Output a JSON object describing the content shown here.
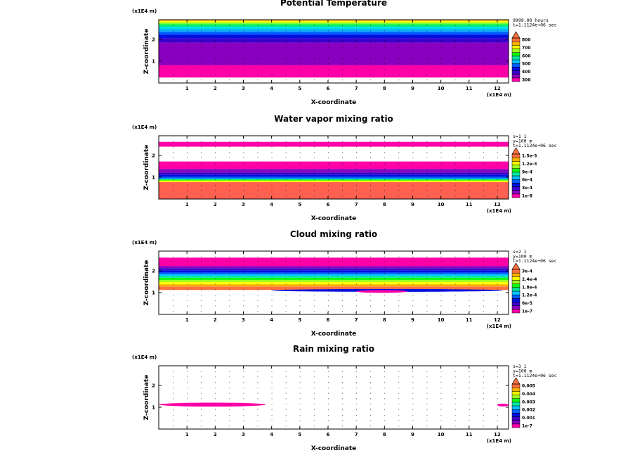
{
  "chart_data": [
    {
      "type": "heatmap",
      "title": "Potential Temperature",
      "xlabel": "X-coordinate",
      "ylabel": "Z-coordinate",
      "x_unit": "(x1E4 m)",
      "z_unit": "(x1E4 m)",
      "info": [
        "9999.00 hours",
        "t=1.1124e+06 sec"
      ],
      "xticks": [
        "1",
        "2",
        "3",
        "4",
        "5",
        "6",
        "7",
        "8",
        "9",
        "10",
        "11",
        "12"
      ],
      "zticks": [
        "1",
        "2"
      ],
      "xlim": [
        0,
        12.4
      ],
      "zlim": [
        0,
        2.9
      ],
      "colorbar": {
        "labels": [
          "300",
          "400",
          "500",
          "600",
          "700",
          "800"
        ],
        "colors": [
          "#ff00a8",
          "#8a00c0",
          "#3c00cc",
          "#0010e0",
          "#0060ff",
          "#00c8ff",
          "#00e8a0",
          "#10ff10",
          "#a0ff20",
          "#ffff00",
          "#ffb000",
          "#ff7040"
        ],
        "extend": "max"
      },
      "layers": [
        {
          "z0": 0.0,
          "z1": 0.25,
          "color": "#ffffff"
        },
        {
          "z0": 0.25,
          "z1": 0.82,
          "color": "#ff00a8"
        },
        {
          "z0": 0.82,
          "z1": 1.85,
          "color": "#8a00c0"
        },
        {
          "z0": 1.85,
          "z1": 2.05,
          "color": "#3c00cc"
        },
        {
          "z0": 2.05,
          "z1": 2.22,
          "color": "#0010e0"
        },
        {
          "z0": 2.22,
          "z1": 2.36,
          "color": "#0060ff"
        },
        {
          "z0": 2.36,
          "z1": 2.48,
          "color": "#00b4ff"
        },
        {
          "z0": 2.48,
          "z1": 2.58,
          "color": "#00e0e0"
        },
        {
          "z0": 2.58,
          "z1": 2.66,
          "color": "#00e890"
        },
        {
          "z0": 2.66,
          "z1": 2.73,
          "color": "#30ff30"
        },
        {
          "z0": 2.73,
          "z1": 2.79,
          "color": "#c0ff20"
        },
        {
          "z0": 2.79,
          "z1": 2.85,
          "color": "#ffff00"
        },
        {
          "z0": 2.85,
          "z1": 2.9,
          "color": "#ffa020"
        }
      ],
      "blobs": []
    },
    {
      "type": "heatmap",
      "title": "Water vapor mixing ratio",
      "xlabel": "X-coordinate",
      "ylabel": "Z-coordinate",
      "x_unit": "(x1E4 m)",
      "z_unit": "(x1E4 m)",
      "info": [
        "s=1 1",
        "y=100 m",
        "t=1.1124e+06 sec"
      ],
      "xticks": [
        "1",
        "2",
        "3",
        "4",
        "5",
        "6",
        "7",
        "8",
        "9",
        "10",
        "11",
        "12"
      ],
      "zticks": [
        "1",
        "2"
      ],
      "xlim": [
        0,
        12.4
      ],
      "zlim": [
        0,
        2.9
      ],
      "colorbar": {
        "labels": [
          "1e-8",
          "3e-4",
          "6e-4",
          "9e-4",
          "1.2e-3",
          "1.5e-3"
        ],
        "colors": [
          "#ff00a8",
          "#8a00c0",
          "#3c00cc",
          "#0010e0",
          "#0060ff",
          "#00c8ff",
          "#00e8a0",
          "#10ff10",
          "#a0ff20",
          "#ffff00",
          "#ffb000",
          "#ff7040"
        ],
        "extend": "max"
      },
      "layers": [
        {
          "z0": 0.0,
          "z1": 0.78,
          "color": "#ff6050"
        },
        {
          "z0": 0.78,
          "z1": 0.85,
          "color": "#ffff00"
        },
        {
          "z0": 0.85,
          "z1": 0.9,
          "color": "#10ff10"
        },
        {
          "z0": 0.9,
          "z1": 0.95,
          "color": "#00c8ff"
        },
        {
          "z0": 0.95,
          "z1": 1.02,
          "color": "#0060ff"
        },
        {
          "z0": 1.02,
          "z1": 1.12,
          "color": "#0010e0"
        },
        {
          "z0": 1.12,
          "z1": 1.22,
          "color": "#3c00cc"
        },
        {
          "z0": 1.22,
          "z1": 1.38,
          "color": "#8a00c0"
        },
        {
          "z0": 1.38,
          "z1": 1.72,
          "color": "#ff00a8"
        },
        {
          "z0": 2.4,
          "z1": 2.62,
          "color": "#ff00a8"
        }
      ],
      "blobs": []
    },
    {
      "type": "heatmap",
      "title": "Cloud mixing ratio",
      "xlabel": "X-coordinate",
      "ylabel": "Z-coordinate",
      "x_unit": "(x1E4 m)",
      "z_unit": "(x1E4 m)",
      "info": [
        "s=2 1",
        "y=100 m",
        "t=1.1124e+06 sec"
      ],
      "xticks": [
        "1",
        "2",
        "3",
        "4",
        "5",
        "6",
        "7",
        "8",
        "9",
        "10",
        "11",
        "12"
      ],
      "zticks": [
        "1",
        "2"
      ],
      "xlim": [
        0,
        12.4
      ],
      "zlim": [
        0,
        2.9
      ],
      "colorbar": {
        "labels": [
          "1e-7",
          "6e-5",
          "1.2e-4",
          "1.8e-4",
          "2.4e-4",
          "3e-4"
        ],
        "colors": [
          "#ff00a8",
          "#8a00c0",
          "#3c00cc",
          "#0010e0",
          "#0060ff",
          "#00c8ff",
          "#00e8a0",
          "#10ff10",
          "#a0ff20",
          "#ffff00",
          "#ffb000",
          "#ff7040"
        ],
        "extend": "max"
      },
      "layers": [
        {
          "z0": 1.05,
          "z1": 1.12,
          "color": "#ffffff"
        },
        {
          "z0": 1.12,
          "z1": 1.28,
          "color": "#ff7040"
        },
        {
          "z0": 1.28,
          "z1": 1.38,
          "color": "#ffb000"
        },
        {
          "z0": 1.38,
          "z1": 1.48,
          "color": "#ffff00"
        },
        {
          "z0": 1.48,
          "z1": 1.58,
          "color": "#a0ff20"
        },
        {
          "z0": 1.58,
          "z1": 1.68,
          "color": "#10ff10"
        },
        {
          "z0": 1.68,
          "z1": 1.76,
          "color": "#00e8a0"
        },
        {
          "z0": 1.76,
          "z1": 1.84,
          "color": "#00c8ff"
        },
        {
          "z0": 1.84,
          "z1": 1.92,
          "color": "#0060ff"
        },
        {
          "z0": 1.92,
          "z1": 2.02,
          "color": "#0010e0"
        },
        {
          "z0": 2.02,
          "z1": 2.12,
          "color": "#3c00cc"
        },
        {
          "z0": 2.12,
          "z1": 2.22,
          "color": "#8a00c0"
        },
        {
          "z0": 2.22,
          "z1": 2.6,
          "color": "#ff00a8"
        }
      ],
      "blobs": [
        {
          "x0": 4.0,
          "x1": 12.2,
          "zc": 1.1,
          "h": 0.1,
          "color": "#0010e0"
        },
        {
          "x0": 7.0,
          "x1": 8.8,
          "zc": 1.05,
          "h": 0.08,
          "color": "#ff00a8"
        }
      ]
    },
    {
      "type": "heatmap",
      "title": "Rain mixing ratio",
      "xlabel": "X-coordinate",
      "ylabel": "Z-coordinate",
      "x_unit": "(x1E4 m)",
      "z_unit": "(x1E4 m)",
      "info": [
        "s=3 1",
        "y=100 m",
        "t=1.1124e+06 sec"
      ],
      "xticks": [
        "1",
        "2",
        "3",
        "4",
        "5",
        "6",
        "7",
        "8",
        "9",
        "10",
        "11",
        "12"
      ],
      "zticks": [
        "1",
        "2"
      ],
      "xlim": [
        0,
        12.4
      ],
      "zlim": [
        0,
        2.9
      ],
      "colorbar": {
        "labels": [
          "1e-7",
          "0.001",
          "0.002",
          "0.003",
          "0.004",
          "0.005"
        ],
        "colors": [
          "#ff00a8",
          "#8a00c0",
          "#3c00cc",
          "#0010e0",
          "#0060ff",
          "#00c8ff",
          "#00e8a0",
          "#10ff10",
          "#a0ff20",
          "#ffff00",
          "#ffb000",
          "#ff7040"
        ],
        "extend": "max"
      },
      "layers": [],
      "blobs": [
        {
          "x0": 0.0,
          "x1": 3.8,
          "zc": 1.12,
          "h": 0.18,
          "color": "#ff00a8"
        },
        {
          "x0": 12.0,
          "x1": 12.4,
          "zc": 1.1,
          "h": 0.1,
          "color": "#ff00a8"
        }
      ]
    }
  ]
}
